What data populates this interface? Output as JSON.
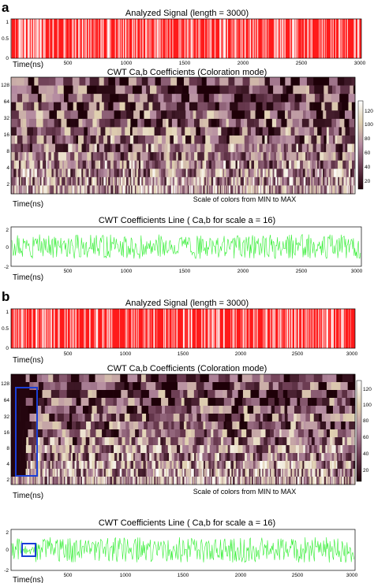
{
  "figure": {
    "panels": [
      {
        "label": "a",
        "signal_title": "Analyzed Signal (length = 3000)",
        "cwt_title": "CWT Ca,b Coefficients (Coloration mode)",
        "line_title": "CWT Coefficients Line ( Ca,b for scale a = 16)",
        "time_label": "Time(ns)",
        "colors_note": "Scale of colors from MIN to MAX",
        "highlight": false
      },
      {
        "label": "b",
        "signal_title": "Analyzed Signal (length = 3000)",
        "cwt_title": "CWT Ca,b Coefficients (Coloration mode)",
        "line_title": "CWT Coefficients Line ( Ca,b for scale a = 16)",
        "time_label": "Time(ns)",
        "colors_note": "Scale of colors from MIN to MAX",
        "highlight": true
      }
    ]
  },
  "chart_data": [
    {
      "type": "heatmap",
      "panel": "a",
      "subplot": "signal",
      "title": "Analyzed Signal (length = 3000)",
      "xlabel": "Time(ns)",
      "x_ticks": [
        500,
        1000,
        1500,
        2000,
        2500,
        3000
      ],
      "y_ticks": [
        0,
        0.5,
        1
      ],
      "xlim": [
        0,
        3000
      ],
      "ylim": [
        0,
        1
      ],
      "color": "#ff1a1a"
    },
    {
      "type": "heatmap",
      "panel": "a",
      "subplot": "cwt",
      "title": "CWT Ca,b Coefficients (Coloration mode)",
      "y_ticks": [
        2,
        4,
        8,
        16,
        32,
        64,
        128
      ],
      "colorbar_ticks": [
        20,
        40,
        60,
        80,
        100,
        120
      ],
      "colormap": "pink"
    },
    {
      "type": "line",
      "panel": "a",
      "subplot": "coef-line",
      "title": "CWT Coefficients Line ( Ca,b for scale a = 16)",
      "xlabel": "Time(ns)",
      "x_ticks": [
        500,
        1000,
        1500,
        2000,
        2500,
        3000
      ],
      "y_ticks": [
        -2,
        0,
        2
      ],
      "xlim": [
        0,
        3000
      ],
      "ylim": [
        -2,
        2
      ],
      "color": "#33ee33"
    },
    {
      "type": "heatmap",
      "panel": "b",
      "subplot": "signal",
      "title": "Analyzed Signal (length = 3000)",
      "xlabel": "Time(ns)",
      "x_ticks": [
        500,
        1000,
        1500,
        2000,
        2500,
        3000
      ],
      "y_ticks": [
        0,
        0.5,
        1
      ],
      "xlim": [
        0,
        3000
      ],
      "ylim": [
        0,
        1
      ],
      "color": "#ff1a1a"
    },
    {
      "type": "heatmap",
      "panel": "b",
      "subplot": "cwt",
      "title": "CWT Ca,b Coefficients (Coloration mode)",
      "y_ticks": [
        2,
        4,
        8,
        16,
        32,
        64,
        128
      ],
      "colorbar_ticks": [
        20,
        40,
        60,
        80,
        100,
        120
      ],
      "colormap": "pink"
    },
    {
      "type": "line",
      "panel": "b",
      "subplot": "coef-line",
      "title": "CWT Coefficients Line ( Ca,b for scale a = 16)",
      "xlabel": "Time(ns)",
      "x_ticks": [
        500,
        1000,
        1500,
        2000,
        2500,
        3000
      ],
      "y_ticks": [
        -2,
        0,
        2
      ],
      "xlim": [
        0,
        3000
      ],
      "ylim": [
        -2,
        2
      ],
      "color": "#33ee33"
    }
  ]
}
